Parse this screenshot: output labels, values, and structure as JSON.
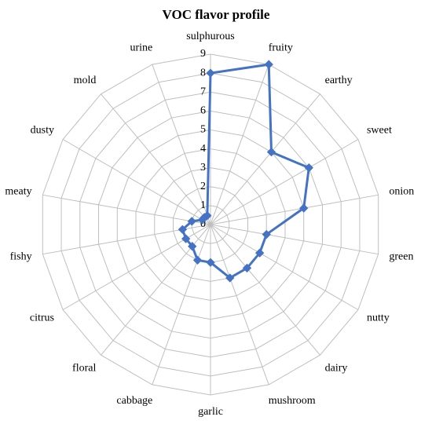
{
  "chart_data": {
    "type": "radar",
    "title": "VOC flavor profile",
    "categories": [
      "sulphurous",
      "fruity",
      "earthy",
      "sweet",
      "onion",
      "green",
      "nutty",
      "dairy",
      "mushroom",
      "garlic",
      "cabbage",
      "floral",
      "citrus",
      "fishy",
      "meaty",
      "dusty",
      "mold",
      "urine"
    ],
    "series": [
      {
        "color": "#4472c4",
        "values": [
          8,
          9,
          5,
          6,
          5,
          3,
          3,
          3,
          3,
          2,
          2,
          1.5,
          1.5,
          1.5,
          1,
          0.5,
          0.5,
          0.5
        ]
      }
    ],
    "ylim": [
      0,
      9
    ],
    "yticks": [
      0,
      1,
      2,
      3,
      4,
      5,
      6,
      7,
      8,
      9
    ],
    "grid": true
  }
}
